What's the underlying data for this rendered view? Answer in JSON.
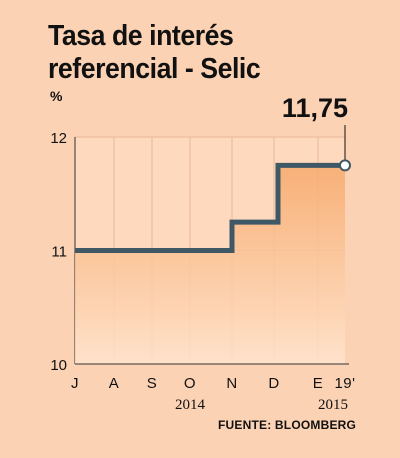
{
  "title_line1": "Tasa de interés",
  "title_line2": "referencial - Selic",
  "unit": "%",
  "source": "FUENTE: BLOOMBERG",
  "colors": {
    "background": "#fbd2b4",
    "plot_background": "#ffd9bd",
    "line": "#3f5866",
    "fill_top": "#f6a96b",
    "grid": "#e8b898"
  },
  "chart_data": {
    "type": "area",
    "step": true,
    "x": [
      "J",
      "A",
      "S",
      "O",
      "N",
      "D",
      "E",
      "19'"
    ],
    "x_year_labels": [
      {
        "label": "2014",
        "at": "O"
      },
      {
        "label": "2015",
        "at": "19'"
      }
    ],
    "y": [
      11,
      11,
      11,
      11,
      11,
      11.25,
      11.75,
      11.75
    ],
    "ylim": [
      10,
      12
    ],
    "yticks": [
      10,
      11,
      12
    ],
    "annotation": {
      "label": "11,75",
      "at": "19'"
    },
    "grid": true
  }
}
